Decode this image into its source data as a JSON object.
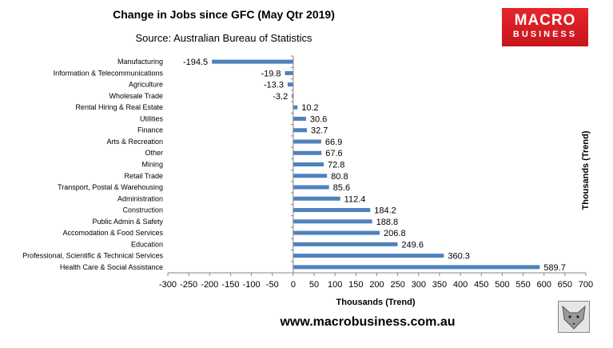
{
  "header": {
    "title": "Change in Jobs since GFC (May Qtr 2019)",
    "source": "Source: Australian Bureau of Statistics"
  },
  "logo": {
    "line1": "MACRO",
    "line2": "BUSINESS"
  },
  "footer": {
    "website": "www.macrobusiness.com.au"
  },
  "chart_data": {
    "type": "bar",
    "orientation": "horizontal",
    "categories": [
      "Manufacturing",
      "Information & Telecommunications",
      "Agriculture",
      "Wholesale Trade",
      "Rental Hiring & Real Estate",
      "Utilities",
      "Finance",
      "Arts & Recreation",
      "Other",
      "Mining",
      "Retail Trade",
      "Transport, Postal & Warehousing",
      "Administration",
      "Construction",
      "Public Admin & Safety",
      "Accomodation & Food Services",
      "Education",
      "Professional, Scientific & Technical Services",
      "Health Care & Social Assistance"
    ],
    "values": [
      -194.5,
      -19.8,
      -13.3,
      -3.2,
      10.2,
      30.6,
      32.7,
      66.9,
      67.6,
      72.8,
      80.8,
      85.6,
      112.4,
      184.2,
      188.8,
      206.8,
      249.6,
      360.3,
      589.7
    ],
    "value_labels": [
      "-194.5",
      "-19.8",
      "-13.3",
      "-3.2",
      "10.2",
      "30.6",
      "32.7",
      "66.9",
      "67.6",
      "72.8",
      "80.8",
      "85.6",
      "112.4",
      "184.2",
      "188.8",
      "206.8",
      "249.6",
      "360.3",
      "589.7"
    ],
    "xlim": [
      -300,
      700
    ],
    "xticks": [
      -300,
      -250,
      -200,
      -150,
      -100,
      -50,
      0,
      50,
      100,
      150,
      200,
      250,
      300,
      350,
      400,
      450,
      500,
      550,
      600,
      650,
      700
    ],
    "xlabel": "Thousands (Trend)",
    "ylabel_right": "Thousands (Trend)",
    "grid": false,
    "legend": "none",
    "bar_color": "#4f81bd"
  }
}
